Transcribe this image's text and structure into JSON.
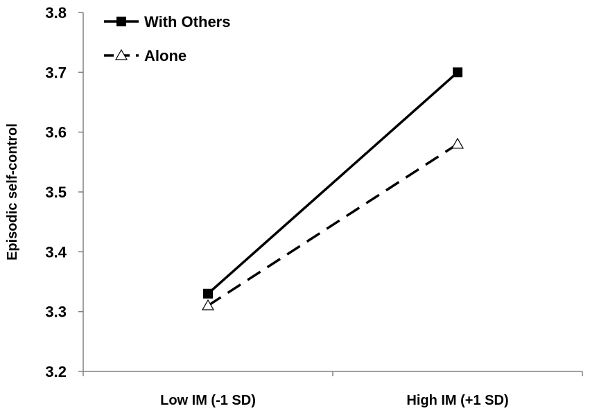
{
  "chart_data": {
    "type": "line",
    "title": "",
    "xlabel": "",
    "ylabel": "Episodic self-control",
    "categories": [
      "Low IM (-1 SD)",
      "High IM (+1 SD)"
    ],
    "ylim": [
      3.2,
      3.8
    ],
    "yticks": [
      "3.2",
      "3.3",
      "3.4",
      "3.5",
      "3.6",
      "3.7",
      "3.8"
    ],
    "grid": false,
    "legend_position": "top-left",
    "series": [
      {
        "name": "With Others",
        "values": [
          3.33,
          3.7
        ],
        "marker": "square",
        "line_style": "solid",
        "color": "#000000"
      },
      {
        "name": "Alone",
        "values": [
          3.31,
          3.58
        ],
        "marker": "open-triangle",
        "line_style": "dashed",
        "color": "#000000"
      }
    ]
  }
}
